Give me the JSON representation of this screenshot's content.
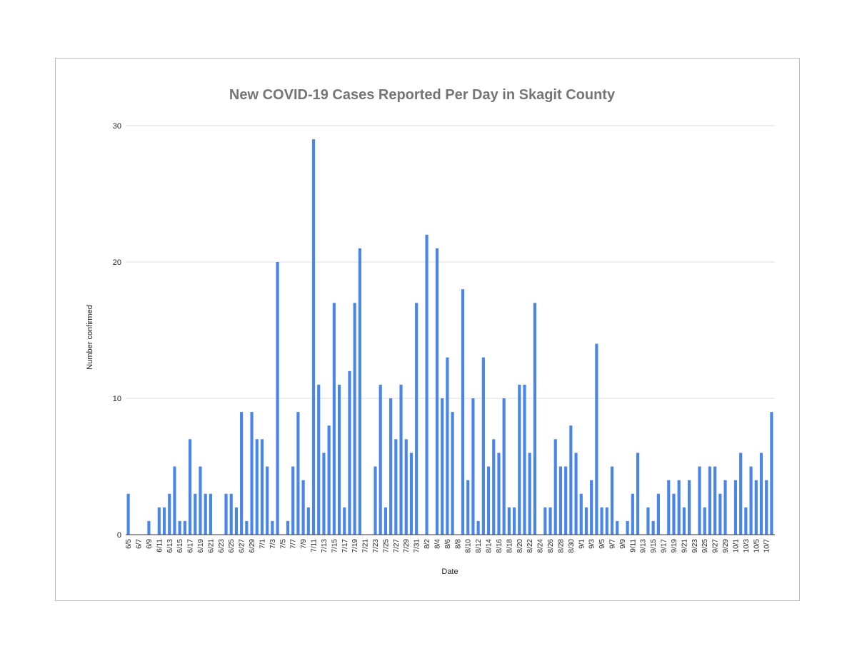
{
  "chart_data": {
    "type": "bar",
    "title": "New COVID-19 Cases Reported Per Day in Skagit County",
    "xlabel": "Date",
    "ylabel": "Number confirmed",
    "ylim": [
      0,
      30
    ],
    "yticks": [
      0,
      10,
      20,
      30
    ],
    "grid": true,
    "legend": "none",
    "bar_color": "#4a86e8",
    "start_date": "6/5",
    "xtick_labels": [
      "6/5",
      "6/7",
      "6/9",
      "6/11",
      "6/13",
      "6/15",
      "6/17",
      "6/19",
      "6/21",
      "6/23",
      "6/25",
      "6/27",
      "6/29",
      "7/1",
      "7/3",
      "7/5",
      "7/7",
      "7/9",
      "7/11",
      "7/13",
      "7/15",
      "7/17",
      "7/19",
      "7/21",
      "7/23",
      "7/25",
      "7/27",
      "7/29",
      "7/31",
      "8/2",
      "8/4",
      "8/6",
      "8/8",
      "8/10",
      "8/12",
      "8/14",
      "8/16",
      "8/18",
      "8/20",
      "8/22",
      "8/24",
      "8/26",
      "8/28",
      "8/30",
      "9/1",
      "9/3",
      "9/5",
      "9/7",
      "9/9",
      "9/11",
      "9/13",
      "9/15",
      "9/17",
      "9/19",
      "9/21",
      "9/23",
      "9/25",
      "9/27",
      "9/29",
      "10/1",
      "10/3",
      "10/5",
      "10/7"
    ],
    "values": [
      3,
      0,
      0,
      0,
      1,
      0,
      2,
      2,
      3,
      5,
      1,
      1,
      7,
      3,
      5,
      3,
      3,
      0,
      0,
      3,
      3,
      2,
      9,
      1,
      9,
      7,
      7,
      5,
      1,
      20,
      0,
      1,
      5,
      9,
      4,
      2,
      29,
      11,
      6,
      8,
      17,
      11,
      2,
      12,
      17,
      21,
      0,
      0,
      5,
      11,
      2,
      10,
      7,
      11,
      7,
      6,
      17,
      0,
      22,
      0,
      21,
      10,
      13,
      9,
      0,
      18,
      4,
      10,
      1,
      13,
      5,
      7,
      6,
      10,
      2,
      2,
      11,
      11,
      6,
      17,
      0,
      2,
      2,
      7,
      5,
      5,
      8,
      6,
      3,
      2,
      4,
      14,
      2,
      2,
      5,
      1,
      0,
      1,
      3,
      6,
      0,
      2,
      1,
      3,
      0,
      4,
      3,
      4,
      2,
      4,
      0,
      5,
      2,
      5,
      5,
      3,
      4,
      0,
      4,
      6,
      2,
      5,
      4,
      6,
      4,
      9
    ]
  }
}
